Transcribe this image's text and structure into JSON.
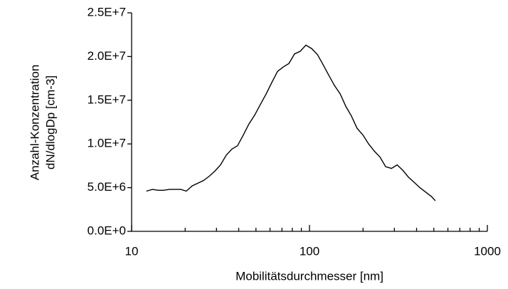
{
  "chart_data": {
    "type": "line",
    "xlabel": "Mobilitätsdurchmesser [nm]",
    "ylabel": [
      "Anzahl-Konzentration",
      "dN/dlogDp [cm-3]"
    ],
    "xscale": "log",
    "xlim": [
      10,
      1000
    ],
    "xticks": [
      10,
      100,
      1000
    ],
    "xminorticks": [
      20,
      30,
      40,
      50,
      60,
      70,
      80,
      90,
      200,
      300,
      400,
      500,
      600,
      700,
      800,
      900
    ],
    "ylim": [
      0,
      25000000
    ],
    "yticks": [
      {
        "value": 0,
        "label": "0.0E+0"
      },
      {
        "value": 5000000,
        "label": "5.0E+6"
      },
      {
        "value": 10000000,
        "label": "1.0E+7"
      },
      {
        "value": 15000000,
        "label": "1.5E+7"
      },
      {
        "value": 20000000,
        "label": "2.0E+7"
      },
      {
        "value": 25000000,
        "label": "2.5E+7"
      }
    ],
    "grid": false,
    "color": "#000000",
    "x": [
      12.1,
      13.1,
      14.1,
      15.1,
      16.3,
      17.5,
      18.9,
      20.3,
      21.9,
      23.5,
      25.3,
      27.3,
      29.4,
      31.6,
      34.0,
      36.6,
      39.4,
      42.4,
      45.7,
      49.2,
      52.9,
      57.0,
      61.3,
      66.1,
      71.1,
      76.6,
      82.4,
      88.7,
      95.5,
      103,
      111,
      119,
      128,
      138,
      149,
      160,
      172,
      185,
      200,
      215,
      231,
      249,
      268,
      289,
      311,
      334,
      360,
      388,
      417,
      449,
      484,
      510
    ],
    "values": [
      4600000,
      4800000,
      4700000,
      4700000,
      4800000,
      4800000,
      4800000,
      4600000,
      5200000,
      5500000,
      5800000,
      6300000,
      6900000,
      7600000,
      8700000,
      9400000,
      9800000,
      11000000,
      12300000,
      13300000,
      14500000,
      15700000,
      17000000,
      18300000,
      18800000,
      19200000,
      20300000,
      20600000,
      21300000,
      20900000,
      20200000,
      19100000,
      17900000,
      16700000,
      15700000,
      14300000,
      13200000,
      11800000,
      11000000,
      10000000,
      9200000,
      8500000,
      7400000,
      7200000,
      7600000,
      7000000,
      6200000,
      5600000,
      5000000,
      4500000,
      4000000,
      3500000
    ]
  }
}
